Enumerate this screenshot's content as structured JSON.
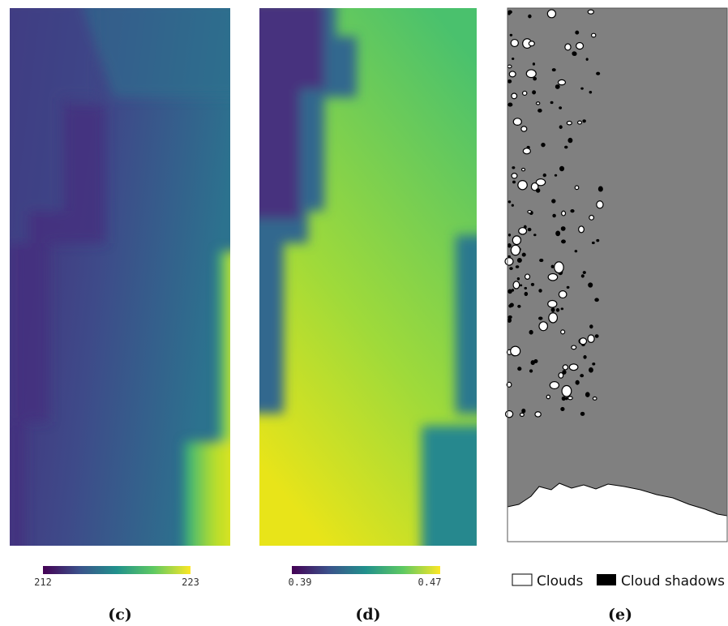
{
  "panels": [
    {
      "label": "(c)",
      "colorbar": {
        "min": 212,
        "max": 223
      }
    },
    {
      "label": "(d)",
      "colorbar": {
        "min": 0.39,
        "max": 0.47
      }
    },
    {
      "label": "(e)",
      "legend": [
        "Clouds",
        "Cloud shadows"
      ]
    }
  ]
}
